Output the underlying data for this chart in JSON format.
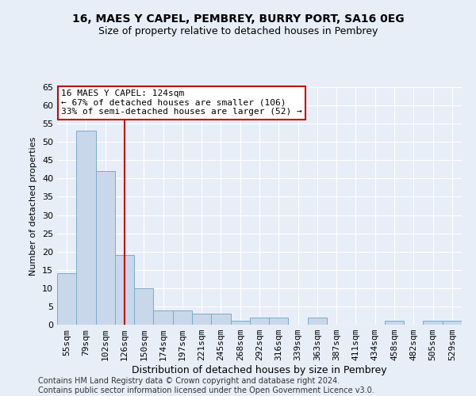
{
  "title1": "16, MAES Y CAPEL, PEMBREY, BURRY PORT, SA16 0EG",
  "title2": "Size of property relative to detached houses in Pembrey",
  "xlabel": "Distribution of detached houses by size in Pembrey",
  "ylabel": "Number of detached properties",
  "categories": [
    "55sqm",
    "79sqm",
    "102sqm",
    "126sqm",
    "150sqm",
    "174sqm",
    "197sqm",
    "221sqm",
    "245sqm",
    "268sqm",
    "292sqm",
    "316sqm",
    "339sqm",
    "363sqm",
    "387sqm",
    "411sqm",
    "434sqm",
    "458sqm",
    "482sqm",
    "505sqm",
    "529sqm"
  ],
  "values": [
    14,
    53,
    42,
    19,
    10,
    4,
    4,
    3,
    3,
    1,
    2,
    2,
    0,
    2,
    0,
    0,
    0,
    1,
    0,
    1,
    1
  ],
  "bar_color": "#c8d8ea",
  "bar_edge_color": "#7aaac8",
  "marker_index": 3,
  "marker_line_color": "#cc0000",
  "annotation_line1": "16 MAES Y CAPEL: 124sqm",
  "annotation_line2": "← 67% of detached houses are smaller (106)",
  "annotation_line3": "33% of semi-detached houses are larger (52) →",
  "annotation_box_color": "#ffffff",
  "annotation_box_edge_color": "#cc0000",
  "ylim": [
    0,
    65
  ],
  "yticks": [
    0,
    5,
    10,
    15,
    20,
    25,
    30,
    35,
    40,
    45,
    50,
    55,
    60,
    65
  ],
  "background_color": "#e8eef8",
  "plot_background_color": "#e8eef8",
  "grid_color": "#ffffff",
  "footer": "Contains HM Land Registry data © Crown copyright and database right 2024.\nContains public sector information licensed under the Open Government Licence v3.0.",
  "title1_fontsize": 10,
  "title2_fontsize": 9,
  "xlabel_fontsize": 9,
  "ylabel_fontsize": 8,
  "tick_fontsize": 8,
  "annotation_fontsize": 8,
  "footer_fontsize": 7
}
